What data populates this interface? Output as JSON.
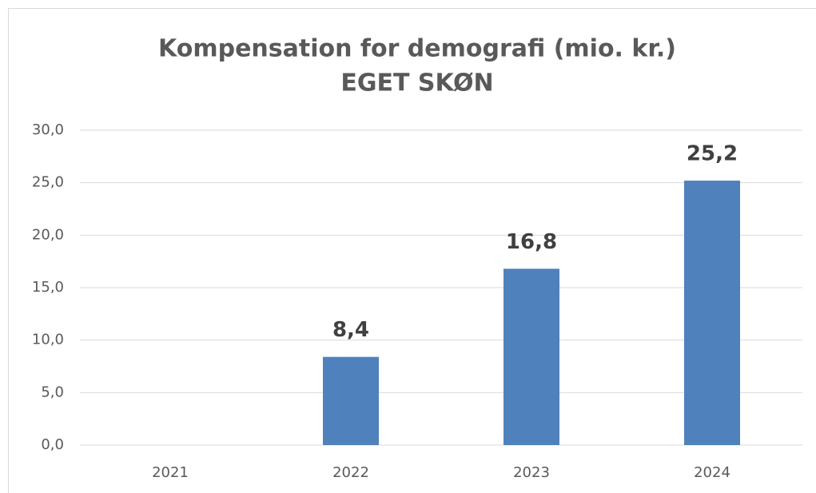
{
  "chart_data": {
    "type": "bar",
    "title": "Kompensation for demografi (mio. kr.)",
    "subtitle": "EGET SKØN",
    "categories": [
      "2021",
      "2022",
      "2023",
      "2024"
    ],
    "values": [
      0,
      8.4,
      16.8,
      25.2
    ],
    "value_labels": [
      null,
      "8,4",
      "16,8",
      "25,2"
    ],
    "color": "#4f81bd",
    "ylim": [
      0,
      30
    ],
    "yticks": [
      {
        "value": 0,
        "label": "0,0"
      },
      {
        "value": 5,
        "label": "5,0"
      },
      {
        "value": 10,
        "label": "10,0"
      },
      {
        "value": 15,
        "label": "15,0"
      },
      {
        "value": 20,
        "label": "20,0"
      },
      {
        "value": 25,
        "label": "25,0"
      },
      {
        "value": 30,
        "label": "30,0"
      }
    ],
    "grid": true
  }
}
